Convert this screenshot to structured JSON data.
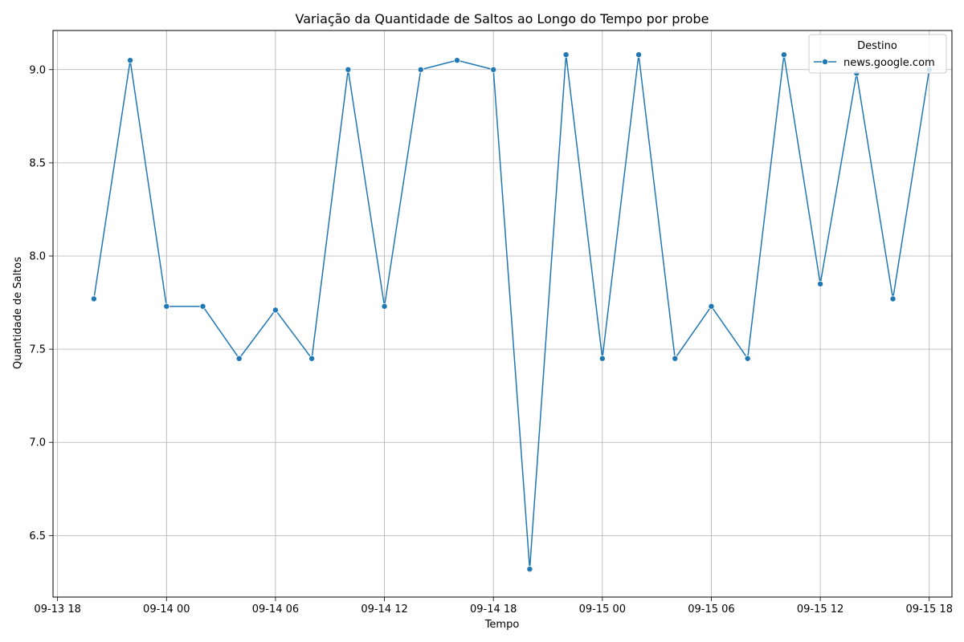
{
  "chart_data": {
    "type": "line",
    "title": "Variação da Quantidade de Saltos ao Longo do Tempo por probe",
    "xlabel": "Tempo",
    "ylabel": "Quantidade de Saltos",
    "xlim": [
      "2023-09-13 17:45",
      "2023-09-15 19:15"
    ],
    "ylim": [
      6.17,
      9.21
    ],
    "x_ticks": [
      {
        "t": "2023-09-13 18:00",
        "label": "09-13 18"
      },
      {
        "t": "2023-09-14 00:00",
        "label": "09-14 00"
      },
      {
        "t": "2023-09-14 06:00",
        "label": "09-14 06"
      },
      {
        "t": "2023-09-14 12:00",
        "label": "09-14 12"
      },
      {
        "t": "2023-09-14 18:00",
        "label": "09-14 18"
      },
      {
        "t": "2023-09-15 00:00",
        "label": "09-15 00"
      },
      {
        "t": "2023-09-15 06:00",
        "label": "09-15 06"
      },
      {
        "t": "2023-09-15 12:00",
        "label": "09-15 12"
      },
      {
        "t": "2023-09-15 18:00",
        "label": "09-15 18"
      }
    ],
    "y_ticks": [
      6.5,
      7.0,
      7.5,
      8.0,
      8.5,
      9.0
    ],
    "y_tick_labels": [
      "6.5",
      "7.0",
      "7.5",
      "8.0",
      "8.5",
      "9.0"
    ],
    "grid": true,
    "legend": {
      "title": "Destino",
      "placement": "top-right"
    },
    "series": [
      {
        "name": "news.google.com",
        "color": "#1f77b4",
        "marker": "circle",
        "points": [
          {
            "t": "2023-09-13 20:00",
            "y": 7.77
          },
          {
            "t": "2023-09-13 22:00",
            "y": 9.05
          },
          {
            "t": "2023-09-14 00:00",
            "y": 7.73
          },
          {
            "t": "2023-09-14 02:00",
            "y": 7.73
          },
          {
            "t": "2023-09-14 04:00",
            "y": 7.45
          },
          {
            "t": "2023-09-14 06:00",
            "y": 7.71
          },
          {
            "t": "2023-09-14 08:00",
            "y": 7.45
          },
          {
            "t": "2023-09-14 10:00",
            "y": 9.0
          },
          {
            "t": "2023-09-14 12:00",
            "y": 7.73
          },
          {
            "t": "2023-09-14 14:00",
            "y": 9.0
          },
          {
            "t": "2023-09-14 16:00",
            "y": 9.05
          },
          {
            "t": "2023-09-14 18:00",
            "y": 9.0
          },
          {
            "t": "2023-09-14 20:00",
            "y": 6.32
          },
          {
            "t": "2023-09-14 22:00",
            "y": 9.08
          },
          {
            "t": "2023-09-15 00:00",
            "y": 7.45
          },
          {
            "t": "2023-09-15 02:00",
            "y": 9.08
          },
          {
            "t": "2023-09-15 04:00",
            "y": 7.45
          },
          {
            "t": "2023-09-15 06:00",
            "y": 7.73
          },
          {
            "t": "2023-09-15 08:00",
            "y": 7.45
          },
          {
            "t": "2023-09-15 10:00",
            "y": 9.08
          },
          {
            "t": "2023-09-15 12:00",
            "y": 7.85
          },
          {
            "t": "2023-09-15 14:00",
            "y": 8.98
          },
          {
            "t": "2023-09-15 16:00",
            "y": 7.77
          },
          {
            "t": "2023-09-15 18:00",
            "y": 9.0
          }
        ]
      }
    ]
  }
}
